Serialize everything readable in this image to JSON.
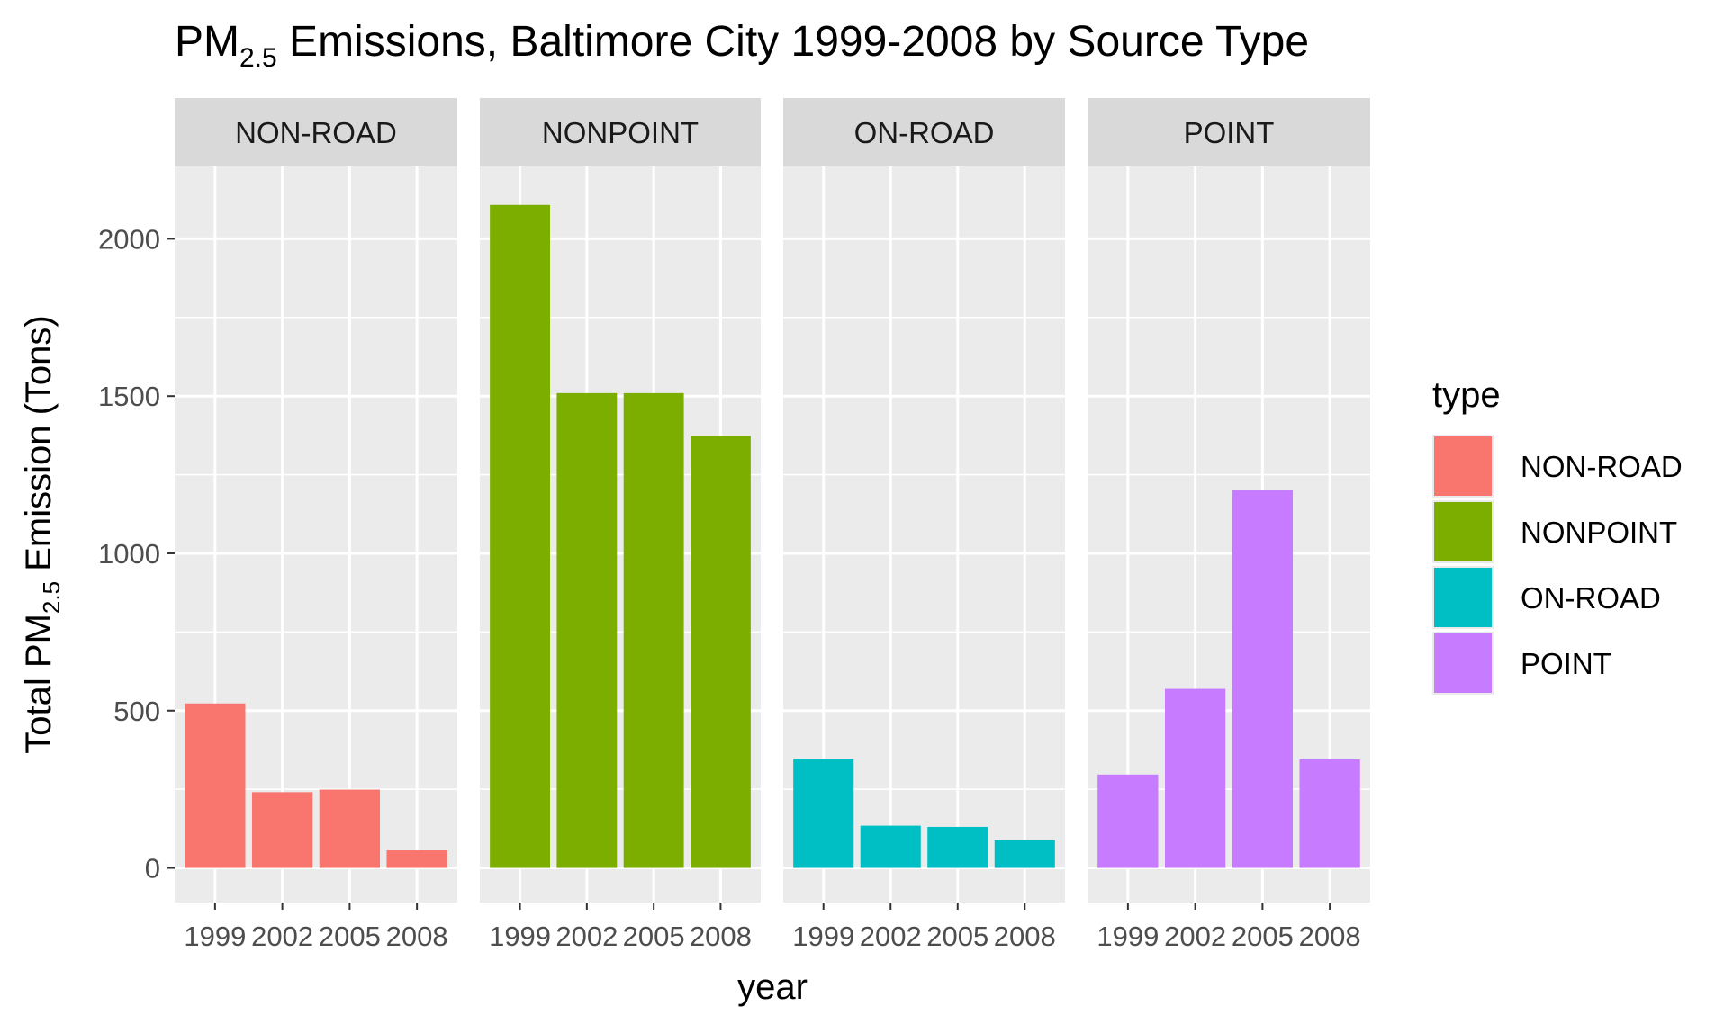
{
  "chart_data": {
    "type": "bar",
    "title": {
      "prefix": "PM",
      "subscript": "2.5",
      "suffix": " Emissions, Baltimore City 1999-2008 by Source Type"
    },
    "xlabel": "year",
    "ylabel": {
      "prefix": "Total PM",
      "subscript": "2.5",
      "suffix": " Emission (Tons)"
    },
    "categories": [
      "1999",
      "2002",
      "2005",
      "2008"
    ],
    "ylim": [
      -110,
      2230
    ],
    "yticks": [
      0,
      500,
      1000,
      1500,
      2000
    ],
    "ytick_labels": [
      "0",
      "500",
      "1000",
      "1500",
      "2000"
    ],
    "grid": true,
    "facets": [
      {
        "name": "NON-ROAD",
        "color": "#F8766D",
        "values": [
          522.94,
          240.85,
          248.93,
          55.82
        ]
      },
      {
        "name": "NONPOINT",
        "color": "#7CAE00",
        "values": [
          2107.62,
          1509.5,
          1509.5,
          1373.21
        ]
      },
      {
        "name": "ON-ROAD",
        "color": "#00BFC4",
        "values": [
          346.82,
          134.31,
          130.43,
          88.28
        ]
      },
      {
        "name": "POINT",
        "color": "#C77CFF",
        "values": [
          296.8,
          569.26,
          1202.49,
          344.98
        ]
      }
    ],
    "legend": {
      "title": "type",
      "position": "right",
      "items": [
        {
          "label": "NON-ROAD",
          "color": "#F8766D"
        },
        {
          "label": "NONPOINT",
          "color": "#7CAE00"
        },
        {
          "label": "ON-ROAD",
          "color": "#00BFC4"
        },
        {
          "label": "POINT",
          "color": "#C77CFF"
        }
      ]
    },
    "theme": {
      "panel_background": "#EBEBEB",
      "strip_background": "#D9D9D9",
      "grid_color": "#FFFFFF",
      "axis_text_color": "#4D4D4D",
      "text_color": "#000000",
      "strip_text_color": "#1A1A1A"
    }
  }
}
